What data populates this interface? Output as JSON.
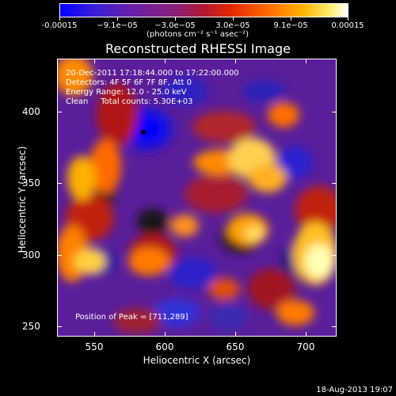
{
  "colorbar": {
    "tick_labels": [
      "-0.00015",
      "−9.1e−05",
      "−3.0e−05",
      "3.0e−05",
      "9.1e−05",
      "0.00015"
    ],
    "units": "(photons cm⁻² s⁻¹ asec⁻²)",
    "colors": [
      "#0000ff",
      "#6a1fa8",
      "#b0182e",
      "#ff6a00",
      "#fff070",
      "#ffffff"
    ]
  },
  "title": "Reconstructed RHESSI Image",
  "info_lines": [
    "20-Dec-2011 17:18:44.000 to 17:22:00.000",
    "Detectors: 4F 5F 6F 7F 8F, Att 0",
    "Energy Range: 12.0 - 25.0 keV",
    "Clean     Total counts: 5.30E+03"
  ],
  "peak_text": "Position of Peak = [711,289]",
  "axes": {
    "x_title": "Heliocentric X (arcsec)",
    "y_title": "Heliocentric Y (arcsec)",
    "x_ticks": [
      "550",
      "600",
      "650",
      "700"
    ],
    "y_ticks": [
      "400",
      "350",
      "300",
      "250"
    ]
  },
  "timestamp": "18-Aug-2013 19:07"
}
